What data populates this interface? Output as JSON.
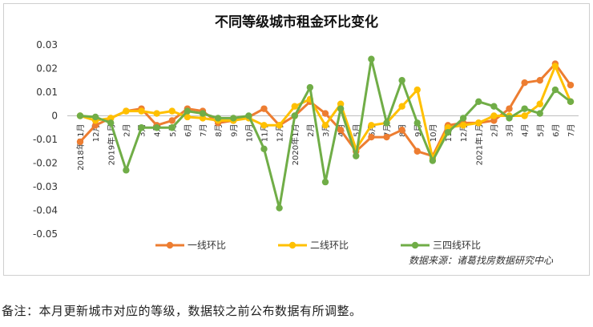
{
  "chart_data": {
    "type": "line",
    "title": "不同等级城市租金环比变化",
    "source": "数据来源：诸葛找房数据研究中心",
    "categories": [
      "2018年11月",
      "12月",
      "2019年1月",
      "2月",
      "3月",
      "4月",
      "5月",
      "6月",
      "7月",
      "8月",
      "9月",
      "10月",
      "11月",
      "12月",
      "2020年1月",
      "2月",
      "3月",
      "4月",
      "5月",
      "6月",
      "7月",
      "8月",
      "9月",
      "10月",
      "11月",
      "12月",
      "2021年1月",
      "2月",
      "3月",
      "4月",
      "5月",
      "6月",
      "7月"
    ],
    "y_ticks": [
      "0.03",
      "0.02",
      "0.01",
      "0",
      "-0.01",
      "-0.02",
      "-0.03",
      "-0.04",
      "-0.05"
    ],
    "ylim": [
      -0.05,
      0.03
    ],
    "grid": true,
    "legend_position": "bottom",
    "series": [
      {
        "name": "一线环比",
        "color": "#ED7D31",
        "values": [
          -0.011,
          -0.004,
          -0.001,
          0.002,
          0.003,
          -0.004,
          -0.002,
          0.003,
          0.002,
          -0.003,
          -0.002,
          -0.0005,
          0.003,
          -0.004,
          0.0,
          0.006,
          0.001,
          -0.006,
          -0.015,
          -0.009,
          -0.009,
          -0.006,
          -0.015,
          -0.017,
          -0.004,
          -0.003,
          -0.003,
          -0.002,
          0.003,
          0.014,
          0.015,
          0.022,
          0.013
        ]
      },
      {
        "name": "二线环比",
        "color": "#FFC000",
        "values": [
          0.0,
          -0.002,
          -0.001,
          0.002,
          0.002,
          0.001,
          0.002,
          -0.0005,
          -0.001,
          -0.002,
          -0.002,
          -0.001,
          -0.004,
          -0.004,
          0.004,
          0.007,
          -0.004,
          0.005,
          -0.014,
          -0.004,
          -0.003,
          0.004,
          0.011,
          -0.018,
          -0.005,
          -0.004,
          -0.003,
          0.0,
          0.0,
          0.0,
          0.005,
          0.021,
          0.006
        ]
      },
      {
        "name": "三四线环比",
        "color": "#70AD47",
        "values": [
          0.0,
          -0.0005,
          -0.003,
          -0.023,
          -0.005,
          -0.005,
          -0.005,
          0.002,
          0.001,
          -0.001,
          -0.001,
          0.0,
          -0.014,
          -0.039,
          0.0,
          0.012,
          -0.028,
          0.003,
          -0.017,
          0.024,
          -0.003,
          0.015,
          -0.003,
          -0.019,
          -0.007,
          -0.001,
          0.006,
          0.004,
          -0.001,
          0.003,
          0.001,
          0.011,
          0.006
        ]
      }
    ]
  },
  "note": "备注：本月更新城市对应的等级，数据较之前公布数据有所调整。"
}
